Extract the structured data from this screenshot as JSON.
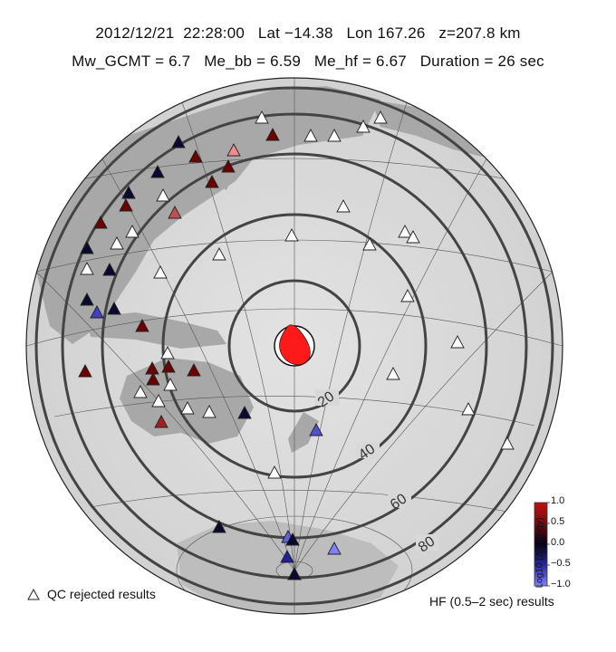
{
  "header": {
    "date": "2012/12/21",
    "time": "22:28:00",
    "lat": "Lat −14.38",
    "lon": "Lon 167.26",
    "depth": "z=207.8 km",
    "mw_gcmt": "Mw_GCMT = 6.7",
    "me_bb": "Me_bb = 6.59",
    "me_hf": "Me_hf = 6.67",
    "duration": "Duration = 26 sec"
  },
  "map": {
    "projection": "azimuthal equidistant centered on epicenter",
    "distance_rings_deg": [
      "20",
      "40",
      "60",
      "80"
    ],
    "beachball_color": "#ff1a1a"
  },
  "legend": {
    "qc_label": "QC rejected results",
    "hf_label": "HF (0.5–2 sec) results"
  },
  "colorbar": {
    "title": "Log10 (Δ Energy)",
    "ticks": [
      "1.0",
      "0.5",
      "0.0",
      "−0.5",
      "−1.0"
    ],
    "colors": {
      "high": "#8b0000",
      "mid": "#000022",
      "low": "#7070ff"
    }
  }
}
